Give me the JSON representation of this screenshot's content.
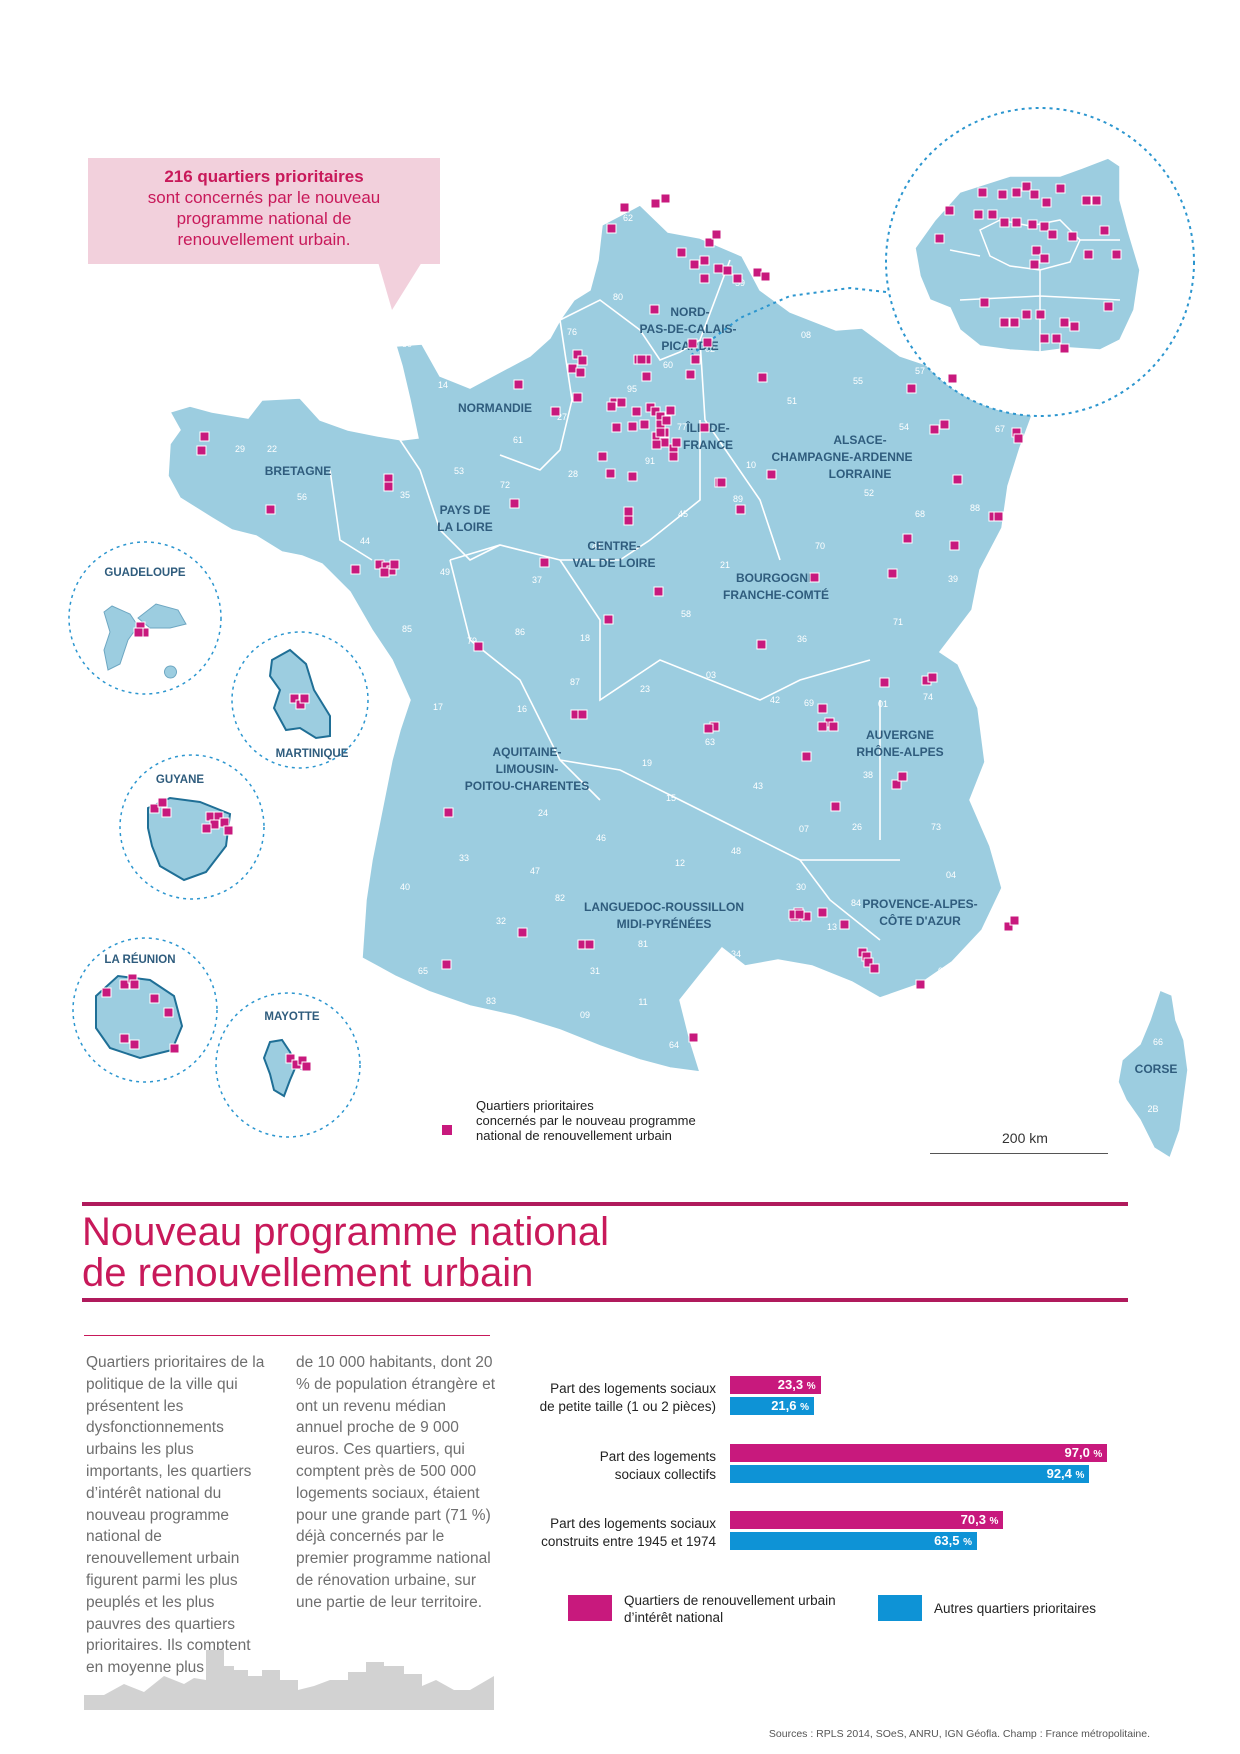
{
  "callout": {
    "headline": "216 quartiers prioritaires",
    "line1": "sont concernés par le nouveau",
    "line2": "programme national de",
    "line3": "renouvellement urbain."
  },
  "map": {
    "regions": [
      "NORD-PAS-DE-CALAIS-PICARDIE",
      "NORMANDIE",
      "ÎLE-DE-FRANCE",
      "ALSACE-CHAMPAGNE-ARDENNE-LORRAINE",
      "BRETAGNE",
      "PAYS DE LA LOIRE",
      "CENTRE-VAL DE LOIRE",
      "BOURGOGNE-FRANCHE-COMTÉ",
      "AQUITAINE-LIMOUSIN-POITOU-CHARENTES",
      "AUVERGNE-RHÔNE-ALPES",
      "LANGUEDOC-ROUSSILLON-MIDI-PYRÉNÉES",
      "PROVENCE-ALPES-CÔTE D'AZUR",
      "CORSE"
    ],
    "region_lines": {
      "npdc1": "NORD-",
      "npdc2": "PAS-DE-CALAIS-",
      "npdc3": "PICARDIE",
      "normandie": "NORMANDIE",
      "idf1": "ÎLE-DE-",
      "idf2": "FRANCE",
      "acal1": "ALSACE-",
      "acal2": "CHAMPAGNE-ARDENNE",
      "acal3": "LORRAINE",
      "bretagne": "BRETAGNE",
      "pdl1": "PAYS DE",
      "pdl2": "LA LOIRE",
      "cvl1": "CENTRE-",
      "cvl2": "VAL DE LOIRE",
      "bfc1": "BOURGOGNE",
      "bfc2": "FRANCHE-COMTÉ",
      "alpc1": "AQUITAINE-",
      "alpc2": "LIMOUSIN-",
      "alpc3": "POITOU-CHARENTES",
      "ara1": "AUVERGNE",
      "ara2": "RHÔNE-ALPES",
      "lrmp1": "LANGUEDOC-ROUSSILLON",
      "lrmp2": "MIDI-PYRÉNÉES",
      "paca1": "PROVENCE-ALPES-",
      "paca2": "CÔTE D'AZUR",
      "corse": "CORSE"
    },
    "overseas": {
      "guadeloupe": "GUADELOUPE",
      "martinique": "MARTINIQUE",
      "guyane": "GUYANE",
      "reunion": "LA RÉUNION",
      "mayotte": "MAYOTTE"
    },
    "departments": [
      "62",
      "59",
      "80",
      "76",
      "60",
      "02",
      "08",
      "50",
      "14",
      "27",
      "95",
      "61",
      "28",
      "91",
      "77",
      "51",
      "55",
      "57",
      "54",
      "67",
      "29",
      "22",
      "56",
      "35",
      "53",
      "72",
      "44",
      "49",
      "85",
      "79",
      "86",
      "37",
      "41",
      "45",
      "89",
      "10",
      "52",
      "88",
      "68",
      "70",
      "21",
      "58",
      "18",
      "36",
      "71",
      "39",
      "25",
      "90",
      "87",
      "23",
      "03",
      "17",
      "16",
      "42",
      "69",
      "01",
      "74",
      "63",
      "19",
      "15",
      "43",
      "07",
      "26",
      "38",
      "73",
      "24",
      "33",
      "46",
      "12",
      "48",
      "47",
      "40",
      "32",
      "82",
      "81",
      "31",
      "09",
      "11",
      "34",
      "30",
      "84",
      "13",
      "04",
      "05",
      "06",
      "83",
      "65",
      "64",
      "66",
      "2B",
      "2A"
    ],
    "legend": {
      "line1": "Quartiers prioritaires",
      "line2": "concernés par le nouveau programme",
      "line3": "national de renouvellement urbain"
    },
    "scale": "200 km",
    "colors": {
      "land": "#9ccde0",
      "marker": "#c8197d",
      "border": "#ffffff",
      "label": "#2f5c7d"
    }
  },
  "title": {
    "line1": "Nouveau programme national",
    "line2": "de renouvellement urbain"
  },
  "body": {
    "col1": "Quartiers prioritaires de la politique de la ville qui présentent les dysfonctionnements urbains les plus importants, les quartiers d’intérêt national du nouveau programme national de renouvellement urbain figurent parmi les plus peuplés et les plus pauvres des quartiers prioritaires. Ils comptent en moyenne plus",
    "col2": "de 10 000 habitants, dont 20 % de population étrangère et ont un revenu médian annuel proche de 9 000 euros. Ces quartiers, qui comptent près de 500 000 logements sociaux, étaient pour une grande part (71 %) déjà concernés par le premier programme national de rénovation urbaine, sur une partie de leur territoire."
  },
  "chart_data": {
    "type": "bar",
    "orientation": "horizontal",
    "unit": "%",
    "categories": [
      "Part des logements sociaux de petite taille (1 ou 2 pièces)",
      "Part des logements sociaux collectifs",
      "Part des logements sociaux construits entre 1945 et 1974"
    ],
    "category_lines": [
      [
        "Part des logements sociaux",
        "de petite taille (1 ou 2 pièces)"
      ],
      [
        "Part des logements",
        "sociaux collectifs"
      ],
      [
        "Part des logements sociaux",
        "construits entre 1945 et 1974"
      ]
    ],
    "series": [
      {
        "name": "Quartiers de renouvellement urbain d’intérêt national",
        "values": [
          23.3,
          97.0,
          70.3
        ],
        "labels": [
          "23,3",
          "97,0",
          "70,3"
        ],
        "color": "#c8197d"
      },
      {
        "name": "Autres quartiers prioritaires",
        "values": [
          21.6,
          92.4,
          63.5
        ],
        "labels": [
          "21,6",
          "92,4",
          "63,5"
        ],
        "color": "#0e93d6"
      }
    ],
    "legend_lines": [
      [
        "Quartiers de renouvellement urbain",
        "d’intérêt national"
      ],
      [
        "Autres quartiers prioritaires"
      ]
    ],
    "legend_position": "bottom",
    "xlim": [
      0,
      100
    ]
  },
  "source": "Sources : RPLS 2014, SOeS, ANRU, IGN Géofla. Champ : France métropolitaine."
}
